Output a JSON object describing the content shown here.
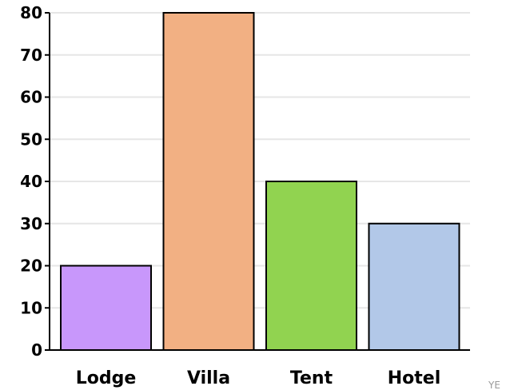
{
  "chart_data": {
    "type": "bar",
    "categories": [
      "Lodge",
      "Villa",
      "Tent",
      "Hotel"
    ],
    "values": [
      20,
      80,
      40,
      30
    ],
    "colors": [
      "#c897fb",
      "#f2b083",
      "#91d350",
      "#b2c8e8"
    ],
    "title": "",
    "xlabel": "",
    "ylabel": "",
    "ylim": [
      0,
      80
    ],
    "yticks": [
      0,
      10,
      20,
      30,
      40,
      50,
      60,
      70,
      80
    ],
    "grid": true,
    "bar_edge_color": "#000000",
    "grid_color": "#e6e6e6"
  },
  "corner_text": "YE"
}
